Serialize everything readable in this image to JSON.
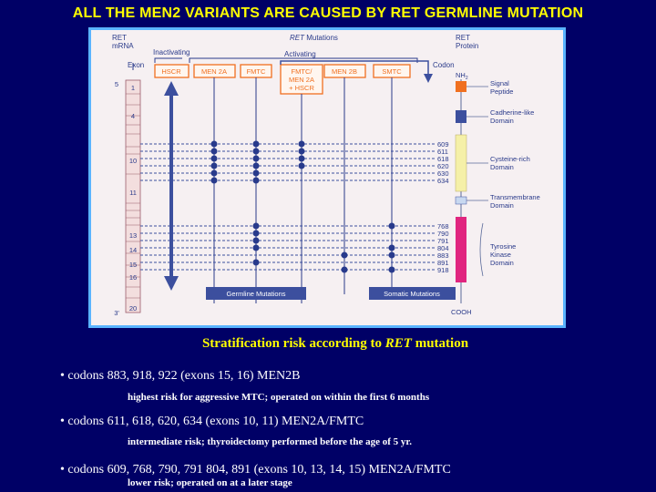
{
  "page": {
    "title": "ALL THE MEN2 VARIANTS ARE CAUSED BY RET GERMLINE MUTATION",
    "subtitle_prefix": "Stratification risk according to ",
    "subtitle_italic": "RET",
    "subtitle_suffix": " mutation",
    "bullets": [
      {
        "text": "• codons 883, 918, 922 (exons 15, 16) MEN2B",
        "note": "highest risk for aggressive MTC; operated on within the first 6 months"
      },
      {
        "text": "• codons 611, 618, 620, 634 (exons 10, 11) MEN2A/FMTC",
        "note": "intermediate risk; thyroidectomy performed before the age of 5 yr."
      },
      {
        "text": "• codons 609, 768, 790, 791 804, 891 (exons 10, 13, 14, 15) MEN2A/FMTC",
        "note": "lower risk; operated on at a later stage"
      }
    ]
  },
  "figure": {
    "ret_mrna_label": [
      "RET",
      "mRNA"
    ],
    "ret_protein_label": [
      "RET",
      "Protein"
    ],
    "mutations_header_italic": "RET",
    "mutations_header_suffix": " Mutations",
    "inactivating_label": "Inactivating",
    "activating_label": "Activating",
    "exon_label": "Exon",
    "codon_label": "Codon",
    "nh2_label": "NH",
    "nh2_sub": "2",
    "cooh_label": "COOH",
    "exon_numbers": [
      "5",
      "1",
      "4",
      "10",
      "11",
      "13",
      "14",
      "15",
      "16",
      "3'",
      "20"
    ],
    "phenotype_boxes": [
      "HSCR",
      "MEN 2A",
      "FMTC",
      "FMTC/",
      "MEN 2A",
      "+ HSCR",
      "MEN 2B",
      "SMTC"
    ],
    "codons": [
      "609",
      "611",
      "618",
      "620",
      "630",
      "634",
      "768",
      "790",
      "791",
      "804",
      "883",
      "891",
      "918"
    ],
    "domains": [
      "Signal",
      "Peptide",
      "Cadherine-like",
      "Domain",
      "Cysteine-rich",
      "Domain",
      "Transmembrane",
      "Domain",
      "Tyrosine",
      "Kinase",
      "Domain"
    ],
    "germline_label": "Germline Mutations",
    "somatic_label": "Somatic Mutations",
    "colors": {
      "frame": "#5ab4ff",
      "orange": "#f07020",
      "dot": "#283a8c",
      "blue_box": "#3c4f9e",
      "yellow_domain": "#f5f0a8",
      "magenta_domain": "#e0257f"
    }
  }
}
